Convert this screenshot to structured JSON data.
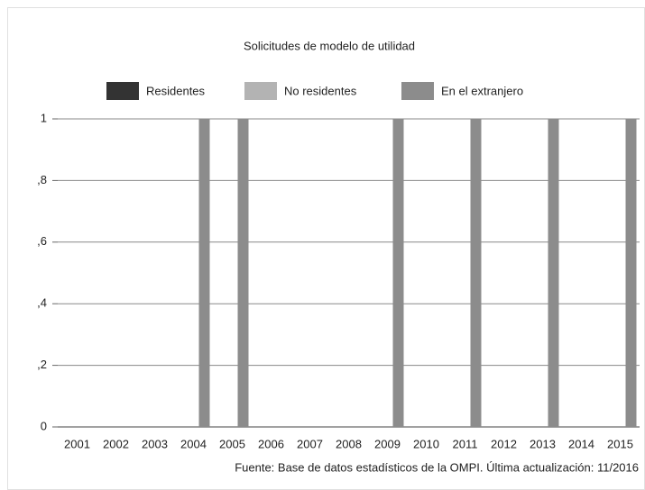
{
  "chart_data": {
    "type": "bar",
    "title": "Solicitudes de modelo de utilidad",
    "categories": [
      "2001",
      "2002",
      "2003",
      "2004",
      "2005",
      "2006",
      "2007",
      "2008",
      "2009",
      "2010",
      "2011",
      "2012",
      "2013",
      "2014",
      "2015"
    ],
    "series": [
      {
        "name": "Residentes",
        "color": "#333333",
        "values": [
          0,
          0,
          0,
          0,
          0,
          0,
          0,
          0,
          0,
          0,
          0,
          0,
          0,
          0,
          0
        ]
      },
      {
        "name": "No residentes",
        "color": "#b3b3b3",
        "values": [
          0,
          0,
          0,
          0,
          0,
          0,
          0,
          0,
          0,
          0,
          0,
          0,
          0,
          0,
          0
        ]
      },
      {
        "name": "En el extranjero",
        "color": "#8c8c8c",
        "values": [
          0,
          0,
          0,
          1,
          1,
          0,
          0,
          0,
          1,
          0,
          1,
          0,
          1,
          0,
          1
        ]
      }
    ],
    "ylim": [
      0,
      1
    ],
    "yticks": [
      0,
      {
        "value": 0.2,
        "label": ",2"
      },
      {
        "value": 0.4,
        "label": ",4"
      },
      {
        "value": 0.6,
        "label": ",6"
      },
      {
        "value": 0.8,
        "label": ",8"
      },
      1
    ],
    "grid": true,
    "legend": "top",
    "source": "Fuente:  Base de datos estadísticos de la OMPI.  Última actualización: 11/2016"
  }
}
